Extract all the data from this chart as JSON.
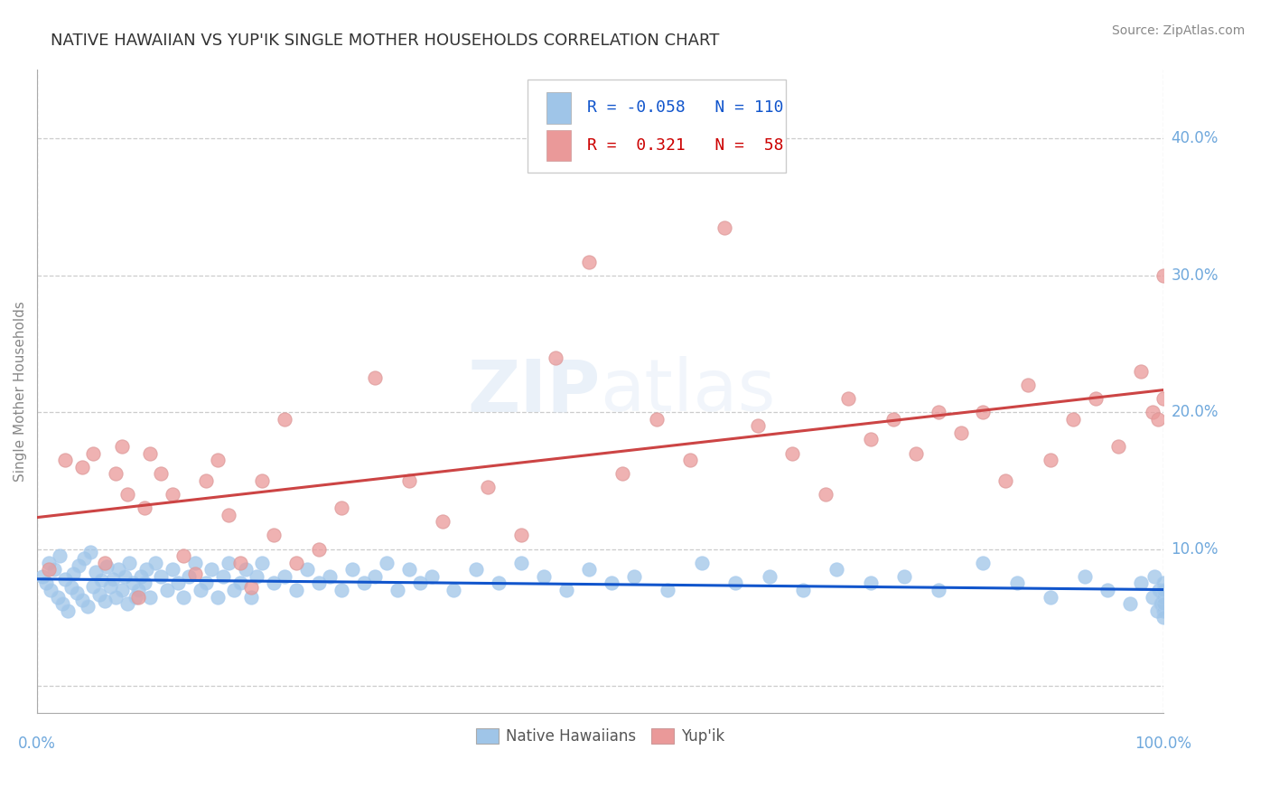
{
  "title": "NATIVE HAWAIIAN VS YUP'IK SINGLE MOTHER HOUSEHOLDS CORRELATION CHART",
  "source": "Source: ZipAtlas.com",
  "ylabel": "Single Mother Households",
  "legend_label1": "Native Hawaiians",
  "legend_label2": "Yup'ik",
  "r1": -0.058,
  "n1": 110,
  "r2": 0.321,
  "n2": 58,
  "xlim": [
    0,
    1.0
  ],
  "ylim": [
    -0.02,
    0.45
  ],
  "yticks": [
    0.0,
    0.1,
    0.2,
    0.3,
    0.4
  ],
  "xtick_labels_pos": [
    0.0,
    1.0
  ],
  "xtick_labels": [
    "0.0%",
    "100.0%"
  ],
  "ytick_labels": [
    "10.0%",
    "20.0%",
    "30.0%",
    "40.0%"
  ],
  "ytick_label_vals": [
    0.1,
    0.2,
    0.3,
    0.4
  ],
  "color_blue": "#9fc5e8",
  "color_pink": "#ea9999",
  "line_color_blue": "#1155cc",
  "line_color_pink": "#cc4444",
  "watermark_zip": "ZIP",
  "watermark_atlas": "atlas",
  "background": "#ffffff",
  "grid_color": "#cccccc",
  "axis_label_color": "#888888",
  "tick_color": "#6fa8dc",
  "r_label_color1": "#1155cc",
  "r_label_color2": "#cc0000",
  "blue_x": [
    0.005,
    0.008,
    0.01,
    0.012,
    0.015,
    0.018,
    0.02,
    0.022,
    0.025,
    0.027,
    0.03,
    0.032,
    0.035,
    0.037,
    0.04,
    0.042,
    0.045,
    0.047,
    0.05,
    0.052,
    0.055,
    0.057,
    0.06,
    0.062,
    0.065,
    0.067,
    0.07,
    0.072,
    0.075,
    0.078,
    0.08,
    0.082,
    0.085,
    0.087,
    0.09,
    0.092,
    0.095,
    0.097,
    0.1,
    0.105,
    0.11,
    0.115,
    0.12,
    0.125,
    0.13,
    0.135,
    0.14,
    0.145,
    0.15,
    0.155,
    0.16,
    0.165,
    0.17,
    0.175,
    0.18,
    0.185,
    0.19,
    0.195,
    0.2,
    0.21,
    0.22,
    0.23,
    0.24,
    0.25,
    0.26,
    0.27,
    0.28,
    0.29,
    0.3,
    0.31,
    0.32,
    0.33,
    0.34,
    0.35,
    0.37,
    0.39,
    0.41,
    0.43,
    0.45,
    0.47,
    0.49,
    0.51,
    0.53,
    0.56,
    0.59,
    0.62,
    0.65,
    0.68,
    0.71,
    0.74,
    0.77,
    0.8,
    0.84,
    0.87,
    0.9,
    0.93,
    0.95,
    0.97,
    0.98,
    0.99,
    0.992,
    0.994,
    0.996,
    0.998,
    1.0,
    1.0,
    1.0,
    1.0,
    1.0,
    1.0
  ],
  "blue_y": [
    0.08,
    0.075,
    0.09,
    0.07,
    0.085,
    0.065,
    0.095,
    0.06,
    0.078,
    0.055,
    0.072,
    0.082,
    0.068,
    0.088,
    0.063,
    0.093,
    0.058,
    0.098,
    0.073,
    0.083,
    0.067,
    0.077,
    0.062,
    0.087,
    0.073,
    0.078,
    0.065,
    0.085,
    0.07,
    0.08,
    0.06,
    0.09,
    0.075,
    0.065,
    0.07,
    0.08,
    0.075,
    0.085,
    0.065,
    0.09,
    0.08,
    0.07,
    0.085,
    0.075,
    0.065,
    0.08,
    0.09,
    0.07,
    0.075,
    0.085,
    0.065,
    0.08,
    0.09,
    0.07,
    0.075,
    0.085,
    0.065,
    0.08,
    0.09,
    0.075,
    0.08,
    0.07,
    0.085,
    0.075,
    0.08,
    0.07,
    0.085,
    0.075,
    0.08,
    0.09,
    0.07,
    0.085,
    0.075,
    0.08,
    0.07,
    0.085,
    0.075,
    0.09,
    0.08,
    0.07,
    0.085,
    0.075,
    0.08,
    0.07,
    0.09,
    0.075,
    0.08,
    0.07,
    0.085,
    0.075,
    0.08,
    0.07,
    0.09,
    0.075,
    0.065,
    0.08,
    0.07,
    0.06,
    0.075,
    0.065,
    0.08,
    0.055,
    0.07,
    0.06,
    0.075,
    0.065,
    0.055,
    0.07,
    0.06,
    0.05
  ],
  "pink_x": [
    0.01,
    0.025,
    0.04,
    0.05,
    0.06,
    0.07,
    0.075,
    0.08,
    0.09,
    0.095,
    0.1,
    0.11,
    0.12,
    0.13,
    0.14,
    0.15,
    0.16,
    0.17,
    0.18,
    0.19,
    0.2,
    0.21,
    0.22,
    0.23,
    0.25,
    0.27,
    0.3,
    0.33,
    0.36,
    0.4,
    0.43,
    0.46,
    0.49,
    0.52,
    0.55,
    0.58,
    0.61,
    0.64,
    0.67,
    0.7,
    0.72,
    0.74,
    0.76,
    0.78,
    0.8,
    0.82,
    0.84,
    0.86,
    0.88,
    0.9,
    0.92,
    0.94,
    0.96,
    0.98,
    0.99,
    0.995,
    1.0,
    1.0
  ],
  "pink_y": [
    0.085,
    0.165,
    0.16,
    0.17,
    0.09,
    0.155,
    0.175,
    0.14,
    0.065,
    0.13,
    0.17,
    0.155,
    0.14,
    0.095,
    0.082,
    0.15,
    0.165,
    0.125,
    0.09,
    0.072,
    0.15,
    0.11,
    0.195,
    0.09,
    0.1,
    0.13,
    0.225,
    0.15,
    0.12,
    0.145,
    0.11,
    0.24,
    0.31,
    0.155,
    0.195,
    0.165,
    0.335,
    0.19,
    0.17,
    0.14,
    0.21,
    0.18,
    0.195,
    0.17,
    0.2,
    0.185,
    0.2,
    0.15,
    0.22,
    0.165,
    0.195,
    0.21,
    0.175,
    0.23,
    0.2,
    0.195,
    0.21,
    0.3
  ]
}
